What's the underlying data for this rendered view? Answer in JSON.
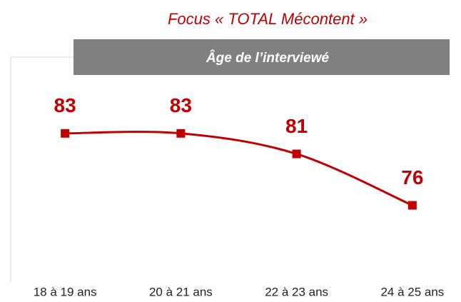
{
  "chart_data": {
    "type": "line",
    "title": "Focus « TOTAL Mécontent »",
    "subtitle": "Âge de l’interviewé",
    "categories": [
      "18 à 19 ans",
      "20 à 21 ans",
      "22 à 23 ans",
      "24 à 25 ans"
    ],
    "series": [
      {
        "name": "TOTAL Mécontent",
        "color": "#c00000",
        "values": [
          83,
          83,
          81,
          76
        ]
      }
    ],
    "ylim": [
      70,
      90
    ]
  }
}
